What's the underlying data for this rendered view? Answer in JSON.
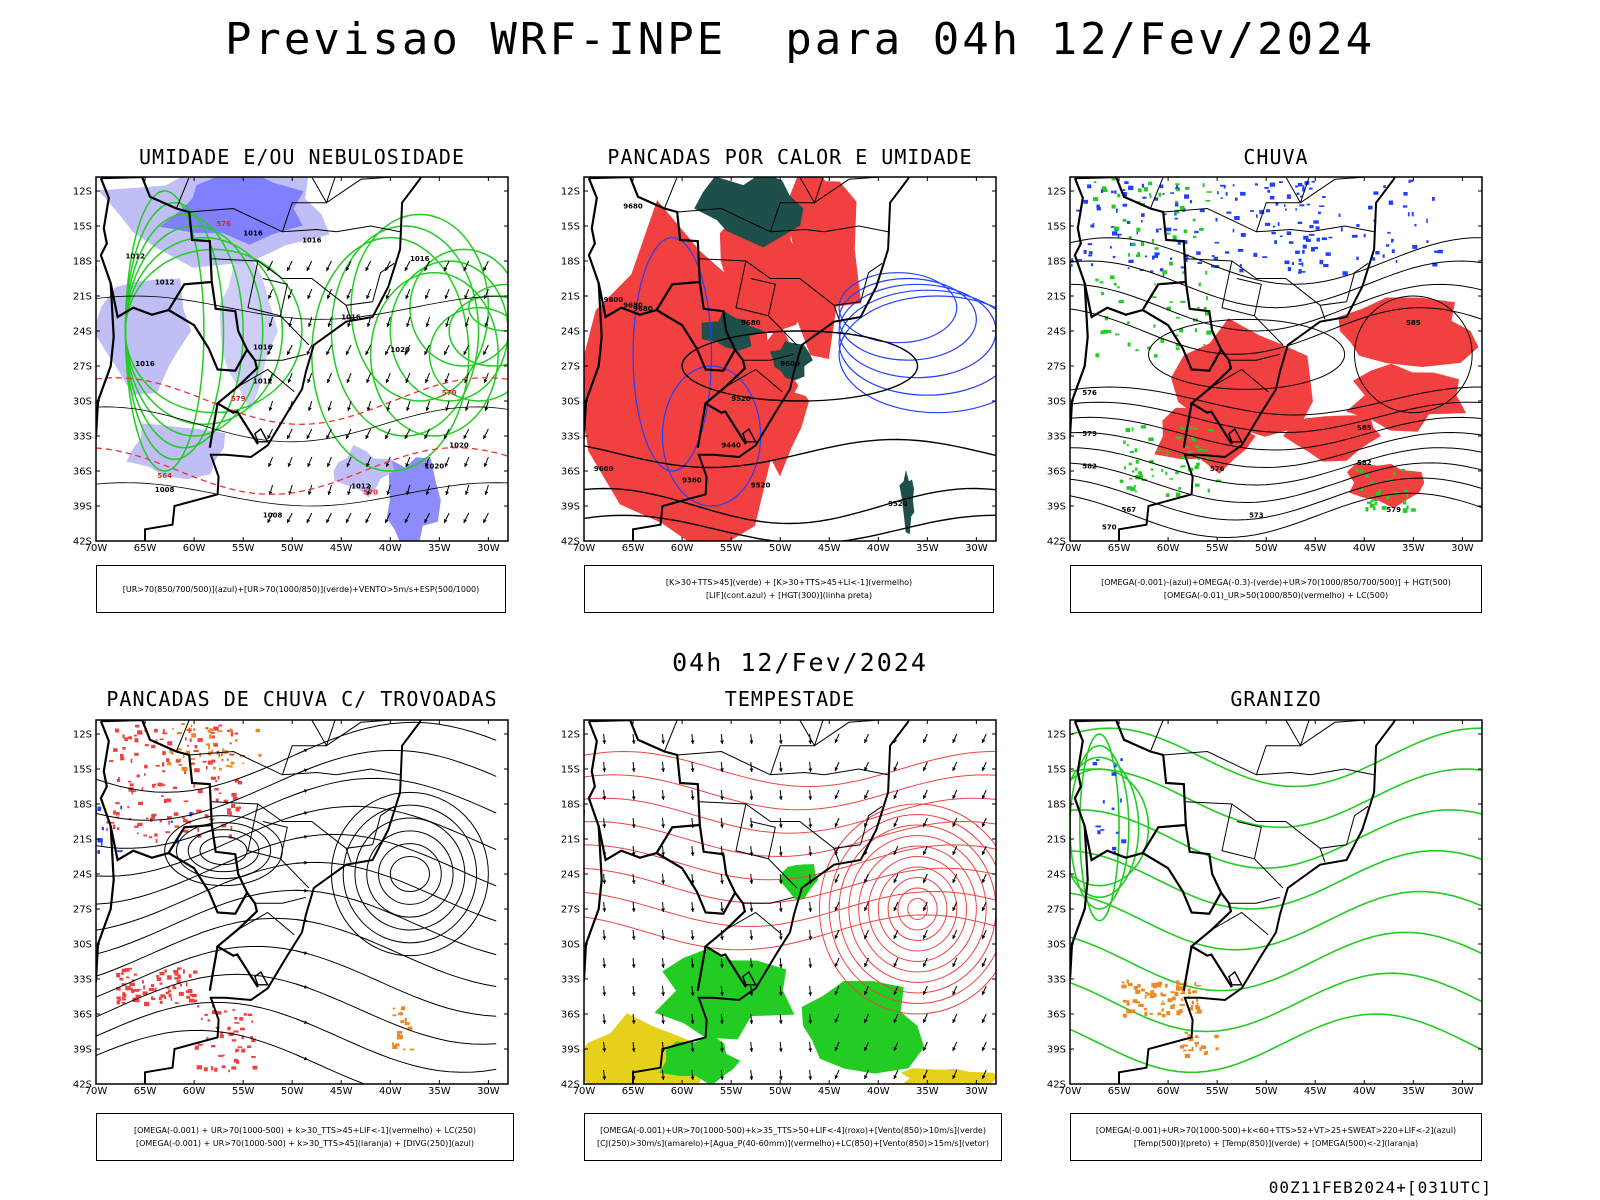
{
  "header": {
    "title": "Previsao WRF-INPE  para 04h 12/Fev/2024",
    "subtitle": "04h 12/Fev/2024",
    "footer": "00Z11FEB2024+[031UTC]"
  },
  "axes": {
    "x_ticks": [
      "70W",
      "65W",
      "60W",
      "55W",
      "50W",
      "45W",
      "40W",
      "35W",
      "30W"
    ],
    "y_ticks": [
      "12S",
      "15S",
      "18S",
      "21S",
      "24S",
      "27S",
      "30S",
      "33S",
      "36S",
      "39S",
      "42S"
    ]
  },
  "panels": [
    {
      "title": "UMIDADE E/OU NEBULOSIDADE",
      "caption": [
        "[UR>70(850/700/500)](azul)+[UR>70(1000/850)](verde)+VENTO>5m/s+ESP(500/1000)"
      ],
      "field_labels": [
        "1016",
        "1016",
        "1012",
        "1012",
        "1016",
        "1016",
        "1016",
        "1012",
        "1020",
        "1008",
        "1016",
        "1008",
        "1020",
        "1020",
        "1012",
        "576",
        "570",
        "579",
        "564",
        "570"
      ]
    },
    {
      "title": "PANCADAS POR CALOR E UMIDADE",
      "caption": [
        "[K>30+TTS>45](verde) + [K>30+TTS>45+LI<-1](vermelho)",
        "[LIF](cont.azul) + [HGT(300)](linha preta)"
      ],
      "field_labels": [
        "9680",
        "9600",
        "9680",
        "9680",
        "9680",
        "9600",
        "9520",
        "9440",
        "9360",
        "9600",
        "9520",
        "9520"
      ]
    },
    {
      "title": "CHUVA",
      "caption": [
        "[OMEGA(-0.001)-(azul)+OMEGA(-0.3)-(verde)+UR>70(1000/850/700/500)] + HGT(500)",
        "[OMEGA(-0.01)_UR>50(1000/850)(vermelho) + LC(500)"
      ],
      "field_labels": [
        "585",
        "585",
        "582",
        "579",
        "576",
        "573",
        "570",
        "567",
        "582",
        "579",
        "576"
      ]
    },
    {
      "title": "PANCADAS DE CHUVA C/ TROVOADAS",
      "caption": [
        "[OMEGA(-0.001) + UR>70(1000-500) + k>30_TTS>45+LIF<-1](vermelho) + LC(250)",
        "[OMEGA(-0.001) + UR>70(1000-500) + k>30_TTS>45](laranja) + [DIVG(250)](azul)"
      ],
      "field_labels": []
    },
    {
      "title": "TEMPESTADE",
      "caption": [
        "[OMEGA(-0.001)+UR>70(1000-500)+k>35_TTS>50+LIF<-4](roxo)+[Vento(850)>10m/s](verde)",
        "[CJ(250)>30m/s](amarelo)+[Agua_P(40-60mm)](vermelho)+LC(850)+[Vento(850)>15m/s](vetor)"
      ],
      "field_labels": []
    },
    {
      "title": "GRANIZO",
      "caption": [
        "[OMEGA(-0.001)+UR>70(1000-500)+k<60+TTS>52+VT>25+SWEAT>220+LIF<-2](azul)",
        "[Temp(500)](preto) + [Temp(850)](verde) + [OMEGA(500)<-2](laranja)"
      ],
      "field_labels": []
    }
  ],
  "colors": {
    "humid_blue": "#8080ff",
    "humid_blue_light": "#b8b8f5",
    "humid_green": "#22cc22",
    "storm_red": "#f04040",
    "dark_teal": "#1e4f4a",
    "lif_blue": "#2040ff",
    "orange": "#ee8822",
    "yellow": "#e6d11a",
    "green_fill": "#22cc22"
  },
  "chart_data": [
    {
      "type": "map",
      "title": "UMIDADE E/OU NEBULOSIDADE",
      "lon_range": [
        -70,
        -28
      ],
      "lat_range": [
        -42,
        -10
      ],
      "layers": [
        "UR>70(850/700/500) azul",
        "UR>70(1000/850) verde",
        "VENTO>5m/s",
        "ESP(500/1000)"
      ]
    },
    {
      "type": "map",
      "title": "PANCADAS POR CALOR E UMIDADE",
      "lon_range": [
        -70,
        -28
      ],
      "lat_range": [
        -42,
        -10
      ],
      "layers": [
        "K>30+TTS>45 verde",
        "K>30+TTS>45+LI<-1 vermelho",
        "LIF contorno azul",
        "HGT(300) linha preta"
      ]
    },
    {
      "type": "map",
      "title": "CHUVA",
      "lon_range": [
        -70,
        -28
      ],
      "lat_range": [
        -42,
        -10
      ],
      "layers": [
        "OMEGA(-0.001) azul",
        "OMEGA(-0.3) verde",
        "UR>50 vermelho",
        "HGT(500)",
        "LC(500)"
      ]
    },
    {
      "type": "map",
      "title": "PANCADAS DE CHUVA C/ TROVOADAS",
      "lon_range": [
        -70,
        -28
      ],
      "lat_range": [
        -42,
        -10
      ],
      "layers": [
        "vermelho",
        "laranja",
        "DIVG(250) azul",
        "LC(250)"
      ]
    },
    {
      "type": "map",
      "title": "TEMPESTADE",
      "lon_range": [
        -70,
        -28
      ],
      "lat_range": [
        -42,
        -10
      ],
      "layers": [
        "Vento(850)>10m/s verde",
        "CJ(250)>30m/s amarelo",
        "Agua_P vermelho",
        "Vento(850)>15m/s vetor"
      ]
    },
    {
      "type": "map",
      "title": "GRANIZO",
      "lon_range": [
        -70,
        -28
      ],
      "lat_range": [
        -42,
        -10
      ],
      "layers": [
        "azul",
        "Temp(500) preto",
        "Temp(850) verde",
        "OMEGA(500)<-2 laranja"
      ]
    }
  ]
}
